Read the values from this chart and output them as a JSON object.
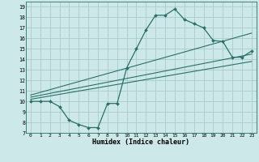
{
  "xlabel": "Humidex (Indice chaleur)",
  "bg_color": "#cce8e8",
  "grid_color": "#aacaca",
  "line_color": "#2a7068",
  "xlim": [
    -0.5,
    23.5
  ],
  "ylim": [
    7,
    19.5
  ],
  "xticks": [
    0,
    1,
    2,
    3,
    4,
    5,
    6,
    7,
    8,
    9,
    10,
    11,
    12,
    13,
    14,
    15,
    16,
    17,
    18,
    19,
    20,
    21,
    22,
    23
  ],
  "yticks": [
    7,
    8,
    9,
    10,
    11,
    12,
    13,
    14,
    15,
    16,
    17,
    18,
    19
  ],
  "series1_x": [
    0,
    1,
    2,
    3,
    4,
    5,
    6,
    7,
    8,
    9,
    10,
    11,
    12,
    13,
    14,
    15,
    16,
    17,
    18,
    19,
    20,
    21,
    22,
    23
  ],
  "series1_y": [
    10,
    10,
    10,
    9.5,
    8.2,
    7.8,
    7.5,
    7.5,
    9.8,
    9.8,
    13.2,
    15.0,
    16.8,
    18.2,
    18.2,
    18.8,
    17.8,
    17.4,
    17.0,
    15.8,
    15.7,
    14.2,
    14.2,
    14.8
  ],
  "line1_x": [
    0,
    23
  ],
  "line1_y": [
    10.2,
    13.8
  ],
  "line2_x": [
    0,
    23
  ],
  "line2_y": [
    10.4,
    14.5
  ],
  "line3_x": [
    0,
    23
  ],
  "line3_y": [
    10.6,
    16.5
  ]
}
